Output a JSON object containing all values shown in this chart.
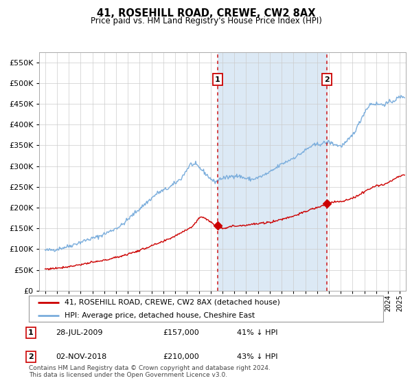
{
  "title": "41, ROSEHILL ROAD, CREWE, CW2 8AX",
  "subtitle": "Price paid vs. HM Land Registry's House Price Index (HPI)",
  "legend_line1": "41, ROSEHILL ROAD, CREWE, CW2 8AX (detached house)",
  "legend_line2": "HPI: Average price, detached house, Cheshire East",
  "footnote": "Contains HM Land Registry data © Crown copyright and database right 2024.\nThis data is licensed under the Open Government Licence v3.0.",
  "table": [
    {
      "n": "1",
      "date": "28-JUL-2009",
      "price": "£157,000",
      "note": "41% ↓ HPI"
    },
    {
      "n": "2",
      "date": "02-NOV-2018",
      "price": "£210,000",
      "note": "43% ↓ HPI"
    }
  ],
  "purchase1_year": 2009.57,
  "purchase1_price": 157000,
  "purchase2_year": 2018.84,
  "purchase2_price": 210000,
  "hpi_color": "#7aaddc",
  "red_color": "#cc0000",
  "background_color": "#ffffff",
  "plot_bg": "#ffffff",
  "shade_color": "#dce9f5",
  "grid_color": "#cccccc",
  "ylim": [
    0,
    575000
  ],
  "yticks": [
    0,
    50000,
    100000,
    150000,
    200000,
    250000,
    300000,
    350000,
    400000,
    450000,
    500000,
    550000
  ],
  "xstart": 1994.5,
  "xend": 2025.5
}
